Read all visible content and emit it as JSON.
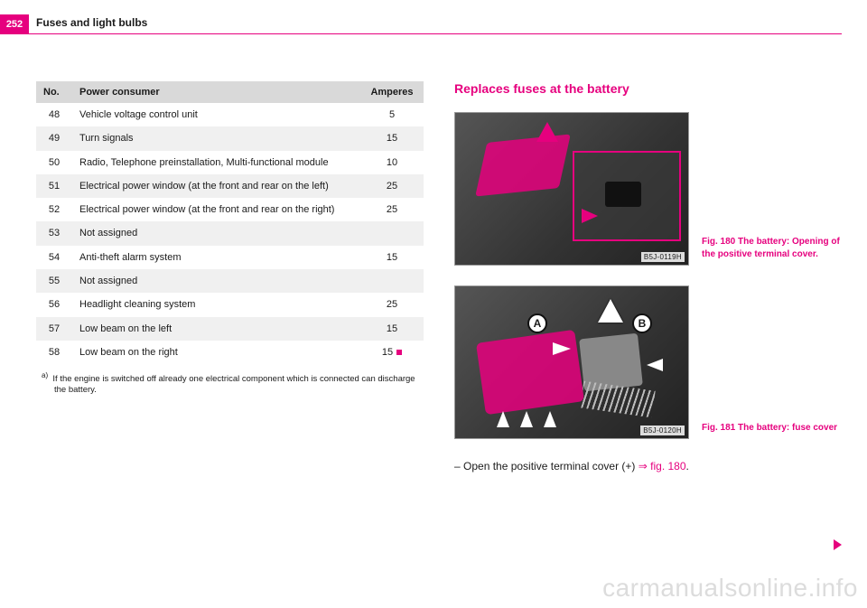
{
  "page_number": "252",
  "header": "Fuses and light bulbs",
  "fuse_table": {
    "columns": [
      "No.",
      "Power consumer",
      "Amperes"
    ],
    "rows": [
      {
        "no": "48",
        "pc": "Vehicle voltage control unit",
        "amp": "5",
        "shade": false
      },
      {
        "no": "49",
        "pc": "Turn signals",
        "amp": "15",
        "shade": true
      },
      {
        "no": "50",
        "pc": "Radio, Telephone preinstallation, Multi-functional module",
        "amp": "10",
        "shade": false
      },
      {
        "no": "51",
        "pc": "Electrical power window (at the front and rear on the left)",
        "amp": "25",
        "shade": true
      },
      {
        "no": "52",
        "pc": "Electrical power window (at the front and rear on the right)",
        "amp": "25",
        "shade": false
      },
      {
        "no": "53",
        "pc": "Not assigned",
        "amp": "",
        "shade": true
      },
      {
        "no": "54",
        "pc": "Anti-theft alarm system",
        "amp": "15",
        "shade": false
      },
      {
        "no": "55",
        "pc": "Not assigned",
        "amp": "",
        "shade": true
      },
      {
        "no": "56",
        "pc": "Headlight cleaning system",
        "amp": "25",
        "shade": false
      },
      {
        "no": "57",
        "pc": "Low beam on the left",
        "amp": "15",
        "shade": true
      },
      {
        "no": "58",
        "pc": "Low beam on the right",
        "amp": "15",
        "shade": false
      }
    ]
  },
  "footnote_marker": "a)",
  "footnote_text": "If the engine is switched off already one electrical component which is connected can discharge the battery.",
  "section_title": "Replaces fuses at the battery",
  "fig180": {
    "label": "B5J-0119H",
    "caption": "Fig. 180  The battery: Opening of the positive terminal cover."
  },
  "fig181": {
    "label": "B5J-0120H",
    "caption": "Fig. 181  The battery: fuse cover",
    "badgeA": "A",
    "badgeB": "B"
  },
  "instruction_prefix": "–  Open the positive terminal cover (+) ",
  "instruction_link": "⇒ fig. 180",
  "instruction_suffix": ".",
  "watermark": "carmanualsonline.info",
  "colors": {
    "accent": "#e6007e",
    "header_shade": "#d9d9d9",
    "row_shade": "#f0f0f0"
  }
}
